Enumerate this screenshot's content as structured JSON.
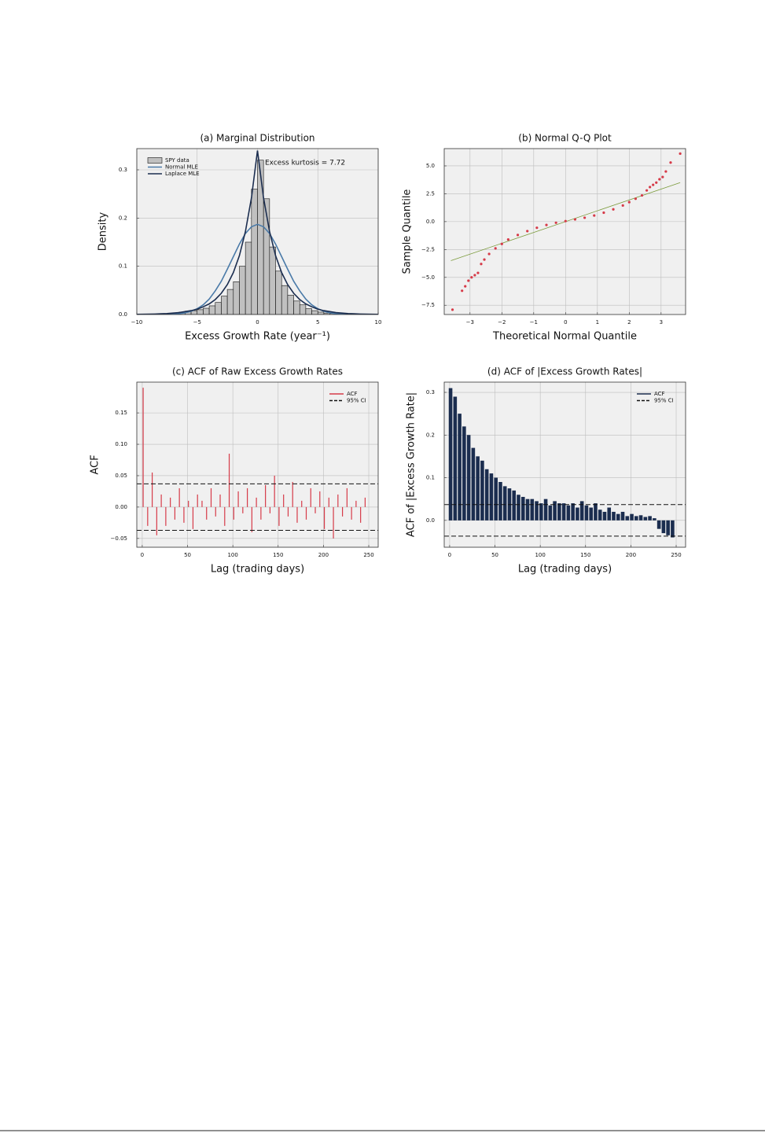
{
  "chart_data": [
    {
      "type": "histogram",
      "title": "(a) Marginal Distribution",
      "xlabel": "Excess Growth Rate (year⁻¹)",
      "ylabel": "Density",
      "annotation": "Excess kurtosis = 7.72",
      "legend": "upper left",
      "grid": true,
      "xlim": [
        -10,
        10
      ],
      "ylim": [
        0,
        0.344
      ],
      "xticks": [
        {
          "value": -10,
          "label": "−10"
        },
        {
          "value": -5,
          "label": "−5"
        },
        0,
        5,
        10
      ],
      "yticks": [
        {
          "value": 0,
          "label": "0.0"
        },
        0.1,
        0.2,
        0.3
      ],
      "histogram": {
        "name": "SPY data",
        "color": "#c0c0c0",
        "edgecolor": "#111111",
        "bins": [
          -7,
          -6.5,
          -6,
          -5.5,
          -5,
          -4.5,
          -4,
          -3.5,
          -3,
          -2.5,
          -2,
          -1.5,
          -1,
          -0.5,
          0,
          0.5,
          1,
          1.5,
          2,
          2.5,
          3,
          3.5,
          4,
          4.5,
          5,
          5.5,
          6,
          6.5,
          7
        ],
        "counts": [
          0.003,
          0.005,
          0.007,
          0.008,
          0.01,
          0.013,
          0.018,
          0.025,
          0.038,
          0.052,
          0.068,
          0.1,
          0.15,
          0.26,
          0.32,
          0.24,
          0.14,
          0.09,
          0.06,
          0.04,
          0.028,
          0.02,
          0.012,
          0.008,
          0.005,
          0.003,
          0.002,
          0.001
        ]
      },
      "x": [
        -10,
        -9.5,
        -9,
        -8.5,
        -8,
        -7.5,
        -7,
        -6.5,
        -6,
        -5.5,
        -5,
        -4.5,
        -4,
        -3.5,
        -3,
        -2.5,
        -2,
        -1.5,
        -1,
        -0.5,
        0,
        0.5,
        1,
        1.5,
        2,
        2.5,
        3,
        3.5,
        4,
        4.5,
        5,
        5.5,
        6,
        6.5,
        7,
        7.5,
        8,
        8.5,
        9,
        9.5,
        10
      ],
      "series": [
        {
          "name": "Normal MLE",
          "color": "#4a7aa8",
          "values": [
            0,
            0,
            0,
            0.0001,
            0.0002,
            0.0004,
            0.0008,
            0.0018,
            0.0036,
            0.0067,
            0.012,
            0.02,
            0.032,
            0.049,
            0.069,
            0.094,
            0.12,
            0.146,
            0.168,
            0.182,
            0.187,
            0.182,
            0.168,
            0.146,
            0.12,
            0.094,
            0.069,
            0.049,
            0.032,
            0.02,
            0.012,
            0.0067,
            0.0036,
            0.0018,
            0.0008,
            0.0004,
            0.0002,
            0.0001,
            0,
            0,
            0
          ]
        },
        {
          "name": "Laplace MLE",
          "color": "#1b2d4f",
          "values": [
            0.0004,
            0.0005,
            0.0007,
            0.001,
            0.0015,
            0.002,
            0.003,
            0.004,
            0.006,
            0.008,
            0.011,
            0.016,
            0.022,
            0.031,
            0.044,
            0.062,
            0.087,
            0.122,
            0.172,
            0.242,
            0.34,
            0.242,
            0.172,
            0.122,
            0.087,
            0.062,
            0.044,
            0.031,
            0.022,
            0.016,
            0.011,
            0.008,
            0.006,
            0.004,
            0.003,
            0.002,
            0.0015,
            0.001,
            0.0007,
            0.0005,
            0.0004
          ]
        }
      ]
    },
    {
      "type": "scatter",
      "title": "(b) Normal Q-Q Plot",
      "xlabel": "Theoretical Normal Quantile",
      "ylabel": "Sample Quantile",
      "grid": true,
      "xlim": [
        -3.81,
        3.77
      ],
      "ylim": [
        -8.33,
        6.55
      ],
      "xticks": [
        {
          "value": -3,
          "label": "−3"
        },
        {
          "value": -2,
          "label": "−2"
        },
        {
          "value": -1,
          "label": "−1"
        },
        0,
        1,
        2,
        3
      ],
      "yticks": [
        {
          "value": -7.5,
          "label": "−7.5"
        },
        {
          "value": -5,
          "label": "−5.0"
        },
        {
          "value": -2.5,
          "label": "−2.5"
        },
        {
          "value": 0,
          "label": "0.0"
        },
        2.5,
        {
          "value": 5,
          "label": "5.0"
        }
      ],
      "color": "#d63a48",
      "x": [
        -3.55,
        -3.25,
        -3.15,
        -3.05,
        -2.95,
        -2.85,
        -2.75,
        -2.65,
        -2.55,
        -2.4,
        -2.2,
        -2.0,
        -1.8,
        -1.5,
        -1.2,
        -0.9,
        -0.6,
        -0.3,
        0,
        0.3,
        0.6,
        0.9,
        1.2,
        1.5,
        1.8,
        2.0,
        2.2,
        2.4,
        2.55,
        2.65,
        2.75,
        2.85,
        2.95,
        3.05,
        3.15,
        3.3,
        3.6
      ],
      "y": [
        -7.9,
        -6.2,
        -5.8,
        -5.3,
        -5.0,
        -4.8,
        -4.6,
        -3.8,
        -3.4,
        -2.9,
        -2.4,
        -2.0,
        -1.6,
        -1.2,
        -0.85,
        -0.55,
        -0.3,
        -0.1,
        0.05,
        0.2,
        0.35,
        0.55,
        0.8,
        1.1,
        1.45,
        1.75,
        2.05,
        2.35,
        2.8,
        3.1,
        3.3,
        3.5,
        3.8,
        4.0,
        4.5,
        5.3,
        6.1
      ],
      "reference_line": {
        "color": "#7a9a3a",
        "x": [
          -3.6,
          3.6
        ],
        "y": [
          -3.5,
          3.5
        ]
      }
    },
    {
      "type": "acf",
      "title": "(c) ACF of Raw Excess Growth Rates",
      "xlabel": "Lag (trading days)",
      "ylabel": "ACF",
      "legend": "upper right",
      "grid": true,
      "xlim": [
        -6,
        260.4
      ],
      "ylim": [
        -0.064,
        0.199
      ],
      "xticks": [
        0,
        50,
        100,
        150,
        200,
        250
      ],
      "yticks": [
        {
          "value": -0.05,
          "label": "−0.05"
        },
        {
          "value": 0,
          "label": "0.00"
        },
        0.05,
        {
          "value": 0.1,
          "label": "0.10"
        },
        0.15
      ],
      "x": [
        1,
        6,
        11,
        16,
        21,
        26,
        31,
        36,
        41,
        46,
        51,
        56,
        61,
        66,
        71,
        76,
        81,
        86,
        91,
        96,
        101,
        106,
        111,
        116,
        121,
        126,
        131,
        136,
        141,
        146,
        151,
        156,
        161,
        166,
        171,
        176,
        181,
        186,
        191,
        196,
        201,
        206,
        211,
        216,
        221,
        226,
        231,
        236,
        241,
        246
      ],
      "series": [
        {
          "name": "ACF",
          "color": "#d63a48",
          "values": [
            0.19,
            -0.03,
            0.055,
            -0.045,
            0.02,
            -0.03,
            0.015,
            -0.02,
            0.03,
            -0.025,
            0.01,
            -0.035,
            0.02,
            0.01,
            -0.02,
            0.03,
            -0.015,
            0.02,
            -0.03,
            0.085,
            -0.02,
            0.025,
            -0.01,
            0.03,
            -0.04,
            0.015,
            -0.02,
            0.035,
            -0.01,
            0.05,
            -0.03,
            0.02,
            -0.015,
            0.04,
            -0.025,
            0.01,
            -0.02,
            0.03,
            -0.01,
            0.025,
            -0.035,
            0.015,
            -0.05,
            0.02,
            -0.015,
            0.03,
            -0.02,
            0.01,
            -0.025,
            0.015
          ]
        }
      ],
      "ci": {
        "name": "95% CI",
        "bounds": [
          -0.037,
          0.037
        ]
      }
    },
    {
      "type": "acf",
      "title": "(d) ACF of |Excess Growth Rates|",
      "xlabel": "Lag (trading days)",
      "ylabel": "ACF of |Excess Growth Rate|",
      "legend": "upper right",
      "grid": true,
      "xlim": [
        -6,
        260.4
      ],
      "ylim": [
        -0.063,
        0.324
      ],
      "xticks": [
        0,
        50,
        100,
        150,
        200,
        250
      ],
      "yticks": [
        {
          "value": 0,
          "label": "0.0"
        },
        0.1,
        0.2,
        0.3
      ],
      "x": [
        1,
        6,
        11,
        16,
        21,
        26,
        31,
        36,
        41,
        46,
        51,
        56,
        61,
        66,
        71,
        76,
        81,
        86,
        91,
        96,
        101,
        106,
        111,
        116,
        121,
        126,
        131,
        136,
        141,
        146,
        151,
        156,
        161,
        166,
        171,
        176,
        181,
        186,
        191,
        196,
        201,
        206,
        211,
        216,
        221,
        226,
        231,
        236,
        241,
        246
      ],
      "series": [
        {
          "name": "ACF",
          "color": "#1b2d4f",
          "values": [
            0.31,
            0.29,
            0.25,
            0.22,
            0.2,
            0.17,
            0.15,
            0.14,
            0.12,
            0.11,
            0.1,
            0.09,
            0.08,
            0.075,
            0.07,
            0.06,
            0.055,
            0.05,
            0.05,
            0.045,
            0.04,
            0.05,
            0.035,
            0.045,
            0.04,
            0.04,
            0.035,
            0.04,
            0.03,
            0.045,
            0.035,
            0.03,
            0.04,
            0.025,
            0.02,
            0.03,
            0.02,
            0.015,
            0.02,
            0.01,
            0.015,
            0.01,
            0.012,
            0.008,
            0.01,
            0.005,
            -0.02,
            -0.03,
            -0.035,
            -0.04
          ]
        }
      ],
      "ci": {
        "name": "95% CI",
        "bounds": [
          -0.037,
          0.037
        ]
      }
    }
  ]
}
